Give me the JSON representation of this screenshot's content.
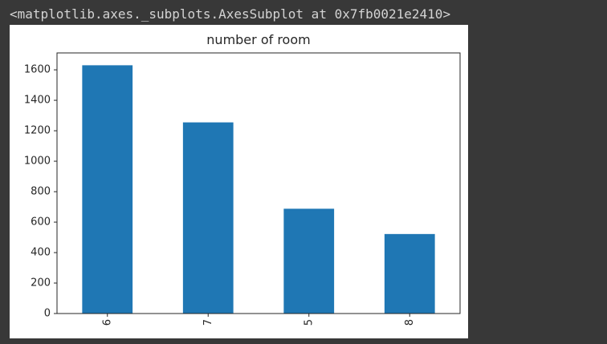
{
  "output_header": "<matplotlib.axes._subplots.AxesSubplot at 0x7fb0021e2410>",
  "colors": {
    "background": "#383838",
    "header_text": "#d4d4d4",
    "figure_bg": "#ffffff",
    "bar": "#1f77b4",
    "axis": "#262626"
  },
  "chart_data": {
    "type": "bar",
    "title": "number of room",
    "xlabel": "",
    "ylabel": "",
    "categories": [
      "6",
      "7",
      "5",
      "8"
    ],
    "values": [
      1630,
      1255,
      688,
      522
    ],
    "ylim": [
      0,
      1711
    ],
    "yticks": [
      0,
      200,
      400,
      600,
      800,
      1000,
      1200,
      1400,
      1600
    ],
    "xtick_rotation": 90,
    "grid": false,
    "legend": "none"
  }
}
